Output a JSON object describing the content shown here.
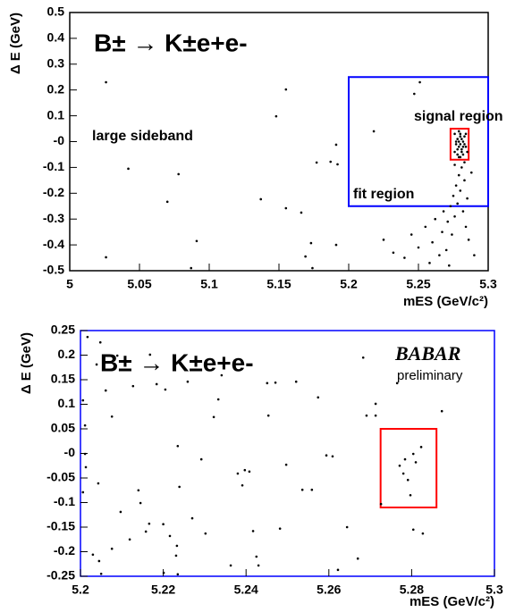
{
  "chart_data": [
    {
      "type": "scatter",
      "title": "B± → K±e+e-",
      "x_label": "mES (GeV/c²)",
      "y_label": "Δ E (GeV)",
      "xlim": [
        5,
        5.3
      ],
      "ylim": [
        -0.5,
        0.5
      ],
      "xticks": [
        5,
        5.05,
        5.1,
        5.15,
        5.2,
        5.25,
        5.3
      ],
      "yticks": [
        -0.5,
        -0.4,
        -0.3,
        -0.2,
        -0.1,
        {
          "value": 0,
          "label": "-0"
        },
        0.1,
        0.2,
        0.3,
        0.4,
        0.5
      ],
      "frame_color": "#000000",
      "color": "#000000",
      "annotations": [
        "large sideband",
        "signal region",
        "fit region"
      ],
      "regions": [
        {
          "x": [
            5.2,
            5.3
          ],
          "y": [
            -0.25,
            0.25
          ],
          "color": "#0000ff"
        },
        {
          "x": [
            5.273,
            5.286
          ],
          "y": [
            -0.07,
            0.05
          ],
          "color": "#ff0000"
        }
      ],
      "x": [
        5.026,
        5.042,
        5.078,
        5.07,
        5.091,
        5.087,
        5.026,
        5.137,
        5.155,
        5.148,
        5.155,
        5.166,
        5.177,
        5.187,
        5.191,
        5.192,
        5.173,
        5.191,
        5.169,
        5.174,
        5.218,
        5.251,
        5.247,
        5.225,
        5.232,
        5.24,
        5.245,
        5.25,
        5.255,
        5.258,
        5.26,
        5.262,
        5.265,
        5.267,
        5.268,
        5.27,
        5.271,
        5.272,
        5.273,
        5.274,
        5.275,
        5.276,
        5.277,
        5.278,
        5.279,
        5.28,
        5.281,
        5.282,
        5.283,
        5.284,
        5.285,
        5.286,
        5.288,
        5.29,
        5.276,
        5.279,
        5.283,
        5.276,
        5.278,
        5.28,
        5.282,
        5.284,
        5.277,
        5.279,
        5.281,
        5.283,
        5.285,
        5.276,
        5.278,
        5.28,
        5.282,
        5.284,
        5.277,
        5.279,
        5.281,
        5.283,
        5.28,
        5.278,
        5.282,
        5.281,
        5.279,
        5.28
      ],
      "values": [
        0.23,
        -0.105,
        -0.126,
        -0.233,
        -0.385,
        -0.49,
        -0.448,
        -0.223,
        0.202,
        0.098,
        -0.258,
        -0.275,
        -0.081,
        -0.078,
        -0.012,
        -0.088,
        -0.393,
        -0.4,
        -0.445,
        -0.49,
        0.04,
        0.23,
        0.185,
        -0.38,
        -0.43,
        -0.45,
        -0.36,
        -0.41,
        -0.33,
        -0.47,
        -0.39,
        -0.3,
        -0.44,
        -0.35,
        -0.27,
        -0.42,
        -0.31,
        -0.48,
        -0.25,
        -0.36,
        -0.21,
        -0.29,
        -0.17,
        -0.24,
        -0.13,
        -0.19,
        -0.1,
        -0.27,
        -0.15,
        -0.33,
        -0.22,
        -0.38,
        -0.12,
        -0.44,
        -0.09,
        -0.06,
        -0.08,
        0.03,
        0.01,
        0.02,
        0.0,
        0.03,
        -0.01,
        -0.02,
        -0.03,
        -0.01,
        -0.04,
        -0.04,
        -0.05,
        -0.06,
        -0.05,
        -0.02,
        0.0,
        0.04,
        0.01,
        0.02,
        -0.01,
        -0.03,
        -0.02,
        -0.04,
        0.0,
        0.03
      ]
    },
    {
      "type": "scatter",
      "title": "B± → K±e+e-",
      "x_label": "mES (GeV/c²)",
      "y_label": "Δ E (GeV)",
      "xlim": [
        5.2,
        5.3
      ],
      "ylim": [
        -0.25,
        0.25
      ],
      "xticks": [
        5.2,
        5.22,
        5.24,
        5.26,
        5.28,
        5.3
      ],
      "yticks": [
        -0.25,
        -0.2,
        -0.15,
        -0.1,
        -0.05,
        {
          "value": 0,
          "label": "-0"
        },
        0.05,
        0.1,
        0.15,
        0.2,
        0.25
      ],
      "frame_color": "#0000ff",
      "color": "#000000",
      "annotations": [
        "BABAR",
        "preliminary"
      ],
      "regions": [
        {
          "x": [
            5.2725,
            5.286
          ],
          "y": [
            -0.11,
            0.05
          ],
          "color": "#ff0000"
        }
      ],
      "x": [
        5.2017,
        5.2048,
        5.2089,
        5.2039,
        5.2061,
        5.2076,
        5.2006,
        5.2011,
        5.2011,
        5.2013,
        5.2006,
        5.2043,
        5.203,
        5.2045,
        5.205,
        5.2076,
        5.2097,
        5.2119,
        5.2127,
        5.214,
        5.2145,
        5.2158,
        5.2166,
        5.2168,
        5.2184,
        5.2205,
        5.22,
        5.2216,
        5.2233,
        5.2231,
        5.2235,
        5.2239,
        5.2201,
        5.2235,
        5.2259,
        5.2302,
        5.2322,
        5.2333,
        5.2341,
        5.2363,
        5.238,
        5.2391,
        5.2397,
        5.2408,
        5.2425,
        5.243,
        5.2417,
        5.2451,
        5.2454,
        5.2471,
        5.2482,
        5.2497,
        5.2536,
        5.2559,
        5.2521,
        5.2574,
        5.2594,
        5.2609,
        5.2622,
        5.2644,
        5.267,
        5.2683,
        5.2691,
        5.2713,
        5.2713,
        5.2726,
        5.2765,
        5.2771,
        5.2784,
        5.278,
        5.2791,
        5.2797,
        5.2804,
        5.281,
        5.2823,
        5.2804,
        5.2827,
        5.2873,
        5.2292,
        5.227
      ],
      "values": [
        0.237,
        0.226,
        0.199,
        0.181,
        0.128,
        0.075,
        0.108,
        0.057,
        -0.001,
        -0.028,
        -0.079,
        -0.061,
        -0.206,
        -0.219,
        -0.245,
        -0.194,
        -0.119,
        -0.175,
        0.137,
        -0.075,
        -0.101,
        -0.159,
        -0.143,
        0.201,
        0.141,
        0.13,
        -0.144,
        -0.168,
        -0.188,
        -0.208,
        0.015,
        -0.068,
        -0.243,
        -0.246,
        0.146,
        -0.163,
        0.074,
        0.11,
        0.159,
        -0.228,
        -0.041,
        -0.065,
        -0.034,
        -0.037,
        -0.21,
        -0.228,
        -0.158,
        0.143,
        0.077,
        0.144,
        -0.153,
        -0.023,
        -0.074,
        -0.074,
        0.146,
        0.114,
        -0.004,
        -0.006,
        -0.237,
        -0.15,
        -0.214,
        0.195,
        0.077,
        0.077,
        0.101,
        -0.103,
        0.143,
        -0.025,
        -0.012,
        -0.041,
        -0.054,
        -0.085,
        -0.001,
        -0.018,
        0.013,
        -0.155,
        -0.163,
        0.086,
        -0.012,
        -0.132
      ]
    }
  ]
}
